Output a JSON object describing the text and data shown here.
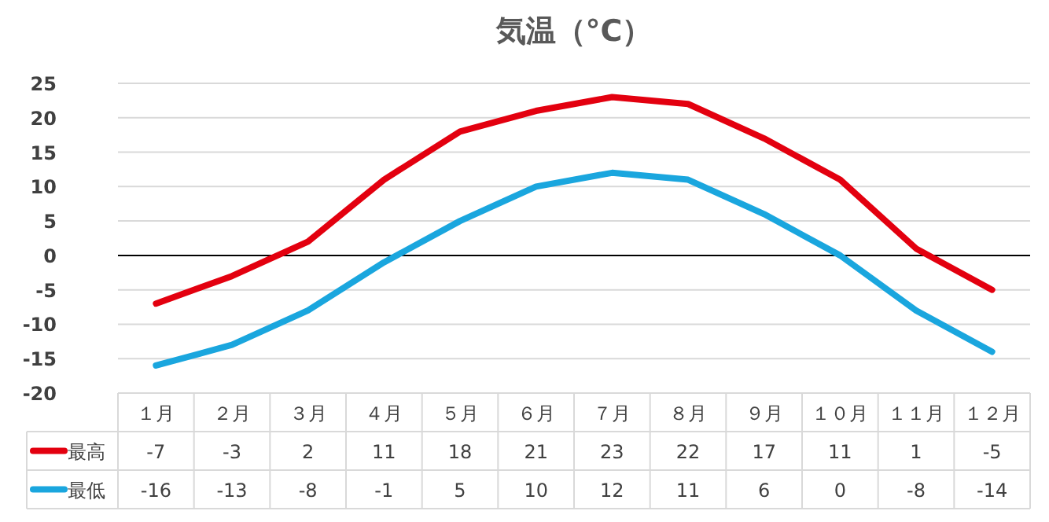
{
  "chart_data": {
    "type": "line",
    "title": "気温（°C）",
    "categories": [
      "１月",
      "２月",
      "３月",
      "４月",
      "５月",
      "６月",
      "７月",
      "８月",
      "９月",
      "１０月",
      "１１月",
      "１２月"
    ],
    "series": [
      {
        "name": "最高",
        "color": "#e3000f",
        "values": [
          -7,
          -3,
          2,
          11,
          18,
          21,
          23,
          22,
          17,
          11,
          1,
          -5
        ]
      },
      {
        "name": "最低",
        "color": "#1aa6de",
        "values": [
          -16,
          -13,
          -8,
          -1,
          5,
          10,
          12,
          11,
          6,
          0,
          -8,
          -14
        ]
      }
    ],
    "ylim": [
      -20,
      25
    ],
    "yticks": [
      -20,
      -15,
      -10,
      -5,
      0,
      5,
      10,
      15,
      20,
      25
    ],
    "grid": "y",
    "legend": "bottom",
    "data_labels": true,
    "marker": "none",
    "line_style": "solid"
  }
}
